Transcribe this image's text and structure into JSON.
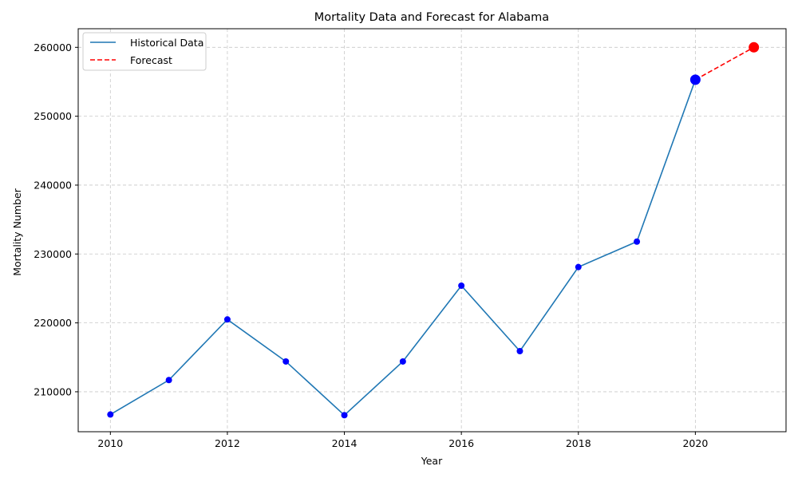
{
  "chart_data": {
    "type": "line",
    "title": "Mortality Data and Forecast for Alabama",
    "xlabel": "Year",
    "ylabel": "Mortality Number",
    "xlim": [
      2009.45,
      2021.55
    ],
    "ylim": [
      204200,
      262700
    ],
    "x_ticks": [
      2010,
      2012,
      2014,
      2016,
      2018,
      2020
    ],
    "y_ticks": [
      210000,
      220000,
      230000,
      240000,
      250000,
      260000
    ],
    "grid": true,
    "legend_position": "top-left",
    "series": [
      {
        "name": "Historical Data",
        "style": "solid",
        "color": "#1f77b4",
        "marker_color": "#0000ff",
        "x": [
          2010,
          2011,
          2012,
          2013,
          2014,
          2015,
          2016,
          2017,
          2018,
          2019,
          2020
        ],
        "values": [
          206700,
          211700,
          220500,
          214400,
          206600,
          214400,
          225400,
          215900,
          228100,
          231800,
          255300
        ]
      },
      {
        "name": "Forecast",
        "style": "dashed",
        "color": "#ff0000",
        "marker_color": "#ff0000",
        "x": [
          2020,
          2021
        ],
        "values": [
          255300,
          260000
        ]
      }
    ],
    "highlighted_points": [
      {
        "x": 2020,
        "value": 255300,
        "color": "#0000ff"
      },
      {
        "x": 2021,
        "value": 260000,
        "color": "#ff0000"
      }
    ]
  }
}
